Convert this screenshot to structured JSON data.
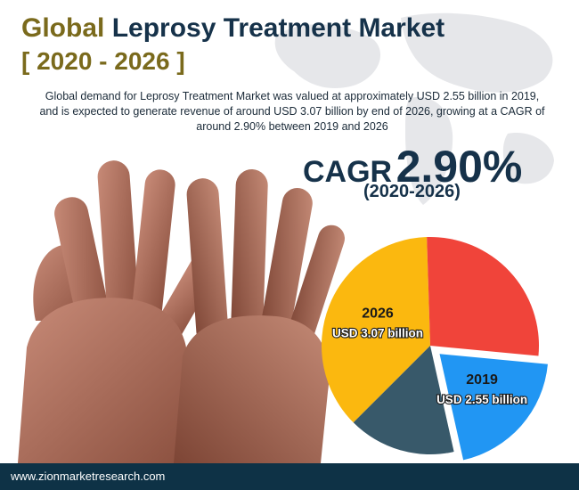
{
  "header": {
    "title_part1": "Global",
    "title_part2": "Leprosy Treatment Market",
    "years": "[ 2020 - 2026 ]",
    "description": "Global demand for Leprosy Treatment Market was valued at approximately USD 2.55 billion in 2019, and is expected to generate revenue of around USD 3.07 billion by end of 2026, growing at a CAGR of around 2.90% between 2019 and 2026"
  },
  "cagr": {
    "label": "CAGR",
    "value": "2.90%",
    "period": "(2020-2026)"
  },
  "footer": {
    "url": "www.zionmarketresearch.com"
  },
  "colors": {
    "title_gold": "#7a6a1c",
    "title_navy": "#16324a",
    "footer_bg": "#0e3246",
    "pie_yellow": "#fbb80f",
    "pie_red": "#f0443a",
    "pie_blue": "#2196f3",
    "pie_slate": "#38596a"
  },
  "chart_data": {
    "type": "pie",
    "slices": [
      {
        "label": "2026",
        "value_label": "USD 3.07 billion",
        "color": "#fbb80f",
        "fraction": 0.37
      },
      {
        "label": "",
        "value_label": "",
        "color": "#f0443a",
        "fraction": 0.27
      },
      {
        "label": "2019",
        "value_label": "USD 2.55 billion",
        "color": "#2196f3",
        "fraction": 0.2,
        "exploded": true
      },
      {
        "label": "",
        "value_label": "",
        "color": "#38596a",
        "fraction": 0.16
      }
    ]
  }
}
